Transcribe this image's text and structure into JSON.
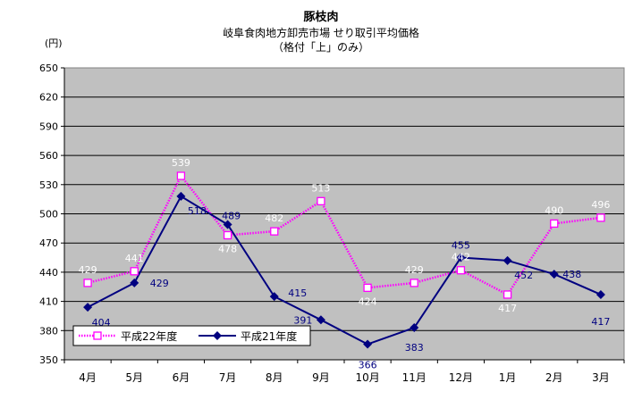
{
  "title": "豚枝肉",
  "subtitle_line1": "岐阜食肉地方卸売市場  せり取引平均価格",
  "subtitle_line2": "（格付「上」のみ）",
  "unit_label": "(円)",
  "chart_data": {
    "type": "line",
    "categories": [
      "4月",
      "5月",
      "6月",
      "7月",
      "8月",
      "9月",
      "10月",
      "11月",
      "12月",
      "1月",
      "2月",
      "3月"
    ],
    "ylim": [
      350,
      650
    ],
    "yticks": [
      350,
      380,
      410,
      440,
      470,
      500,
      530,
      560,
      590,
      620,
      650
    ],
    "grid": true,
    "legend_position": "bottom-left inside plot",
    "series": [
      {
        "name": "平成22年度",
        "values": [
          429,
          441,
          539,
          478,
          482,
          513,
          424,
          429,
          442,
          417,
          490,
          496
        ],
        "color": "#ff00ff",
        "label_color": "#ffffff",
        "style": "dotted",
        "marker": "square-open"
      },
      {
        "name": "平成21年度",
        "values": [
          404,
          429,
          518,
          489,
          415,
          391,
          366,
          383,
          455,
          452,
          438,
          417
        ],
        "color": "#000080",
        "label_color": "#000080",
        "style": "solid",
        "marker": "diamond-filled"
      }
    ],
    "plot_background": "#c0c0c0"
  }
}
